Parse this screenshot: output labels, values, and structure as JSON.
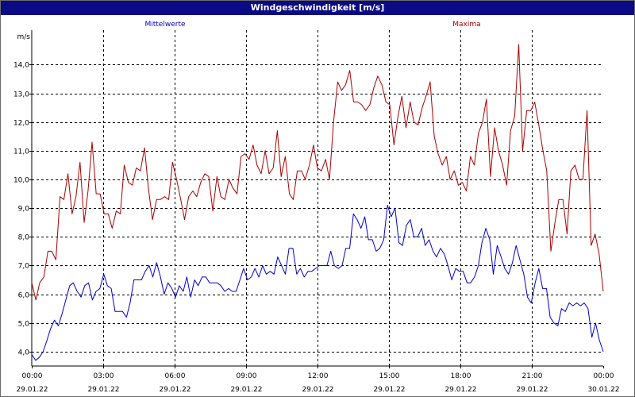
{
  "window": {
    "title": "Windgeschwindigkeit [m/s]"
  },
  "chart_data": {
    "type": "line",
    "title": "Windgeschwindigkeit [m/s]",
    "ylabel": "m/s",
    "xlabel": "",
    "ylim": [
      3.5,
      15.2
    ],
    "yticks": [
      "4,0",
      "5,0",
      "6,0",
      "7,0",
      "8,0",
      "9,0",
      "10,0",
      "11,0",
      "12,0",
      "13,0",
      "14,0"
    ],
    "ytick_values": [
      4,
      5,
      6,
      7,
      8,
      9,
      10,
      11,
      12,
      13,
      14
    ],
    "xlim": [
      0,
      24
    ],
    "xticks": [
      {
        "hour": 0,
        "time": "00:00",
        "date": "29.01.22"
      },
      {
        "hour": 3,
        "time": "03:00",
        "date": "29.01.22"
      },
      {
        "hour": 6,
        "time": "06:00",
        "date": "29.01.22"
      },
      {
        "hour": 9,
        "time": "09:00",
        "date": "29.01.22"
      },
      {
        "hour": 12,
        "time": "12:00",
        "date": "29.01.22"
      },
      {
        "hour": 15,
        "time": "15:00",
        "date": "29.01.22"
      },
      {
        "hour": 18,
        "time": "18:00",
        "date": "29.01.22"
      },
      {
        "hour": 21,
        "time": "21:00",
        "date": "29.01.22"
      },
      {
        "hour": 24,
        "time": "00:00",
        "date": "30.01.22"
      }
    ],
    "grid": true,
    "legend": "top",
    "series": [
      {
        "name": "Mittelwerte",
        "color": "#0000cc",
        "points": [
          [
            0.0,
            3.9
          ],
          [
            0.17,
            3.7
          ],
          [
            0.33,
            3.8
          ],
          [
            0.5,
            4.0
          ],
          [
            0.67,
            4.4
          ],
          [
            0.83,
            4.8
          ],
          [
            1.0,
            5.1
          ],
          [
            1.17,
            4.9
          ],
          [
            1.33,
            5.3
          ],
          [
            1.5,
            5.8
          ],
          [
            1.67,
            6.3
          ],
          [
            1.83,
            6.4
          ],
          [
            2.0,
            6.1
          ],
          [
            2.17,
            5.9
          ],
          [
            2.33,
            6.3
          ],
          [
            2.5,
            6.4
          ],
          [
            2.67,
            5.8
          ],
          [
            2.83,
            6.1
          ],
          [
            3.0,
            6.2
          ],
          [
            3.17,
            6.7
          ],
          [
            3.33,
            6.3
          ],
          [
            3.5,
            6.2
          ],
          [
            3.67,
            5.4
          ],
          [
            3.83,
            5.4
          ],
          [
            4.0,
            5.4
          ],
          [
            4.17,
            5.2
          ],
          [
            4.33,
            5.7
          ],
          [
            4.5,
            6.5
          ],
          [
            4.67,
            6.5
          ],
          [
            4.83,
            6.5
          ],
          [
            5.0,
            6.8
          ],
          [
            5.17,
            7.0
          ],
          [
            5.33,
            6.6
          ],
          [
            5.5,
            7.1
          ],
          [
            5.67,
            6.6
          ],
          [
            5.83,
            6.0
          ],
          [
            6.0,
            6.4
          ],
          [
            6.17,
            6.2
          ],
          [
            6.33,
            5.9
          ],
          [
            6.5,
            6.3
          ],
          [
            6.67,
            6.1
          ],
          [
            6.83,
            6.6
          ],
          [
            7.0,
            5.9
          ],
          [
            7.17,
            6.5
          ],
          [
            7.33,
            6.3
          ],
          [
            7.5,
            6.6
          ],
          [
            7.67,
            6.6
          ],
          [
            7.83,
            6.4
          ],
          [
            8.0,
            6.4
          ],
          [
            8.17,
            6.4
          ],
          [
            8.33,
            6.3
          ],
          [
            8.5,
            6.1
          ],
          [
            8.67,
            6.2
          ],
          [
            8.83,
            6.1
          ],
          [
            9.0,
            6.1
          ],
          [
            9.17,
            6.5
          ],
          [
            9.33,
            6.9
          ],
          [
            9.5,
            6.5
          ],
          [
            9.67,
            6.6
          ],
          [
            9.83,
            6.9
          ],
          [
            10.0,
            6.6
          ],
          [
            10.17,
            7.0
          ],
          [
            10.33,
            6.7
          ],
          [
            10.5,
            6.8
          ],
          [
            10.67,
            6.7
          ],
          [
            10.83,
            7.3
          ],
          [
            11.0,
            7.0
          ],
          [
            11.17,
            6.7
          ],
          [
            11.33,
            7.6
          ],
          [
            11.5,
            7.6
          ],
          [
            11.67,
            6.7
          ],
          [
            11.83,
            6.9
          ],
          [
            12.0,
            6.6
          ],
          [
            12.17,
            6.8
          ],
          [
            12.33,
            6.8
          ],
          [
            12.5,
            6.9
          ],
          [
            12.67,
            7.0
          ],
          [
            12.83,
            7.0
          ],
          [
            13.0,
            7.0
          ],
          [
            13.17,
            7.5
          ],
          [
            13.33,
            7.0
          ],
          [
            13.5,
            6.9
          ],
          [
            13.67,
            7.0
          ],
          [
            13.83,
            7.6
          ],
          [
            14.0,
            7.6
          ],
          [
            14.17,
            8.8
          ],
          [
            14.33,
            8.6
          ],
          [
            14.5,
            8.3
          ],
          [
            14.67,
            8.7
          ],
          [
            14.83,
            7.9
          ],
          [
            15.0,
            7.9
          ],
          [
            15.17,
            7.5
          ],
          [
            15.33,
            7.6
          ],
          [
            15.5,
            7.9
          ],
          [
            15.67,
            9.1
          ],
          [
            15.83,
            8.7
          ],
          [
            16.0,
            9.0
          ],
          [
            16.17,
            7.8
          ],
          [
            16.33,
            7.7
          ],
          [
            16.5,
            8.4
          ],
          [
            16.67,
            8.6
          ],
          [
            16.83,
            8.0
          ],
          [
            17.0,
            8.0
          ],
          [
            17.17,
            8.3
          ],
          [
            17.33,
            7.7
          ],
          [
            17.5,
            7.9
          ],
          [
            17.67,
            7.5
          ],
          [
            17.83,
            7.3
          ],
          [
            18.0,
            7.6
          ],
          [
            18.17,
            7.4
          ],
          [
            18.33,
            7.0
          ],
          [
            18.5,
            6.5
          ],
          [
            18.67,
            6.9
          ],
          [
            18.83,
            6.8
          ],
          [
            19.0,
            6.8
          ],
          [
            19.17,
            6.4
          ],
          [
            19.33,
            6.4
          ],
          [
            19.5,
            6.6
          ],
          [
            19.67,
            7.0
          ],
          [
            19.83,
            7.8
          ],
          [
            20.0,
            8.3
          ],
          [
            20.17,
            7.9
          ],
          [
            20.33,
            6.7
          ],
          [
            20.5,
            7.7
          ],
          [
            20.67,
            7.3
          ],
          [
            20.83,
            6.9
          ],
          [
            21.0,
            6.7
          ],
          [
            21.17,
            7.1
          ],
          [
            21.33,
            7.7
          ],
          [
            21.5,
            7.2
          ],
          [
            21.67,
            6.7
          ],
          [
            21.83,
            5.9
          ],
          [
            22.0,
            5.7
          ],
          [
            22.17,
            6.4
          ],
          [
            22.33,
            6.9
          ],
          [
            22.5,
            6.2
          ],
          [
            22.67,
            6.2
          ],
          [
            22.83,
            5.2
          ],
          [
            23.0,
            5.0
          ],
          [
            23.17,
            4.9
          ],
          [
            23.33,
            5.5
          ],
          [
            23.5,
            5.4
          ],
          [
            23.67,
            5.7
          ],
          [
            23.83,
            5.6
          ],
          [
            24.0,
            5.7
          ],
          [
            24.17,
            5.6
          ],
          [
            24.33,
            5.7
          ],
          [
            24.5,
            5.5
          ],
          [
            24.67,
            4.5
          ],
          [
            24.83,
            5.0
          ],
          [
            25.0,
            4.4
          ],
          [
            25.17,
            4.0
          ]
        ]
      },
      {
        "name": "Maxima",
        "color": "#aa0000",
        "points": [
          [
            0.0,
            6.4
          ],
          [
            0.17,
            5.8
          ],
          [
            0.33,
            6.4
          ],
          [
            0.5,
            6.6
          ],
          [
            0.67,
            7.5
          ],
          [
            0.83,
            7.5
          ],
          [
            1.0,
            7.2
          ],
          [
            1.17,
            9.4
          ],
          [
            1.33,
            9.3
          ],
          [
            1.5,
            10.2
          ],
          [
            1.67,
            8.8
          ],
          [
            1.83,
            9.4
          ],
          [
            2.0,
            10.6
          ],
          [
            2.17,
            8.5
          ],
          [
            2.33,
            9.6
          ],
          [
            2.5,
            11.3
          ],
          [
            2.67,
            9.5
          ],
          [
            2.83,
            9.5
          ],
          [
            3.0,
            8.8
          ],
          [
            3.17,
            8.8
          ],
          [
            3.33,
            8.3
          ],
          [
            3.5,
            8.9
          ],
          [
            3.67,
            8.8
          ],
          [
            3.83,
            10.5
          ],
          [
            4.0,
            9.9
          ],
          [
            4.17,
            9.8
          ],
          [
            4.33,
            10.4
          ],
          [
            4.5,
            10.3
          ],
          [
            4.67,
            11.1
          ],
          [
            4.83,
            9.7
          ],
          [
            5.0,
            8.6
          ],
          [
            5.17,
            9.3
          ],
          [
            5.33,
            9.3
          ],
          [
            5.5,
            9.4
          ],
          [
            5.67,
            9.3
          ],
          [
            5.83,
            10.6
          ],
          [
            6.0,
            10.0
          ],
          [
            6.17,
            9.3
          ],
          [
            6.33,
            8.6
          ],
          [
            6.5,
            9.4
          ],
          [
            6.67,
            9.6
          ],
          [
            6.83,
            9.4
          ],
          [
            7.0,
            9.9
          ],
          [
            7.17,
            10.2
          ],
          [
            7.33,
            10.1
          ],
          [
            7.5,
            8.9
          ],
          [
            7.67,
            10.1
          ],
          [
            7.83,
            9.4
          ],
          [
            8.0,
            9.3
          ],
          [
            8.17,
            10.0
          ],
          [
            8.33,
            9.7
          ],
          [
            8.5,
            9.5
          ],
          [
            8.67,
            10.8
          ],
          [
            8.83,
            10.9
          ],
          [
            9.0,
            10.7
          ],
          [
            9.17,
            11.2
          ],
          [
            9.33,
            10.5
          ],
          [
            9.5,
            10.2
          ],
          [
            9.67,
            11.0
          ],
          [
            9.83,
            10.2
          ],
          [
            10.0,
            10.4
          ],
          [
            10.17,
            11.7
          ],
          [
            10.33,
            10.1
          ],
          [
            10.5,
            10.8
          ],
          [
            10.67,
            9.5
          ],
          [
            10.83,
            9.3
          ],
          [
            11.0,
            10.3
          ],
          [
            11.17,
            10.3
          ],
          [
            11.33,
            10.0
          ],
          [
            11.5,
            10.5
          ],
          [
            11.67,
            11.2
          ],
          [
            11.83,
            10.4
          ],
          [
            12.0,
            10.3
          ],
          [
            12.17,
            10.7
          ],
          [
            12.33,
            10.0
          ],
          [
            12.5,
            12.0
          ],
          [
            12.67,
            13.4
          ],
          [
            12.83,
            13.1
          ],
          [
            13.0,
            13.3
          ],
          [
            13.17,
            13.8
          ],
          [
            13.33,
            12.7
          ],
          [
            13.5,
            12.7
          ],
          [
            13.67,
            12.6
          ],
          [
            13.83,
            12.4
          ],
          [
            14.0,
            12.6
          ],
          [
            14.17,
            13.2
          ],
          [
            14.33,
            13.6
          ],
          [
            14.5,
            13.3
          ],
          [
            14.67,
            12.7
          ],
          [
            14.83,
            12.6
          ],
          [
            15.0,
            11.2
          ],
          [
            15.17,
            12.2
          ],
          [
            15.33,
            12.9
          ],
          [
            15.5,
            11.8
          ],
          [
            15.67,
            12.7
          ],
          [
            15.83,
            12.0
          ],
          [
            16.0,
            11.9
          ],
          [
            16.17,
            12.5
          ],
          [
            16.33,
            12.9
          ],
          [
            16.5,
            13.4
          ],
          [
            16.67,
            11.5
          ],
          [
            16.83,
            10.9
          ],
          [
            17.0,
            10.5
          ],
          [
            17.17,
            10.8
          ],
          [
            17.33,
            10.0
          ],
          [
            17.5,
            10.3
          ],
          [
            17.67,
            9.8
          ],
          [
            17.83,
            9.9
          ],
          [
            18.0,
            9.6
          ],
          [
            18.17,
            10.8
          ],
          [
            18.33,
            10.5
          ],
          [
            18.5,
            11.6
          ],
          [
            18.67,
            12.0
          ],
          [
            18.83,
            12.8
          ],
          [
            19.0,
            10.1
          ],
          [
            19.17,
            11.8
          ],
          [
            19.33,
            11.0
          ],
          [
            19.5,
            10.5
          ],
          [
            19.67,
            9.8
          ],
          [
            19.83,
            11.7
          ],
          [
            20.0,
            12.2
          ],
          [
            20.17,
            14.7
          ],
          [
            20.33,
            11.0
          ],
          [
            20.5,
            12.4
          ],
          [
            20.67,
            12.4
          ],
          [
            20.83,
            12.7
          ],
          [
            21.0,
            11.9
          ],
          [
            21.17,
            11.0
          ],
          [
            21.33,
            10.3
          ],
          [
            21.5,
            7.5
          ],
          [
            21.67,
            8.5
          ],
          [
            21.83,
            9.3
          ],
          [
            22.0,
            9.3
          ],
          [
            22.17,
            8.1
          ],
          [
            22.33,
            10.3
          ],
          [
            22.5,
            10.5
          ],
          [
            22.67,
            10.0
          ],
          [
            22.83,
            10.0
          ],
          [
            23.0,
            12.4
          ],
          [
            23.17,
            7.7
          ],
          [
            23.33,
            8.1
          ],
          [
            23.5,
            7.4
          ],
          [
            23.67,
            6.1
          ]
        ]
      }
    ]
  }
}
